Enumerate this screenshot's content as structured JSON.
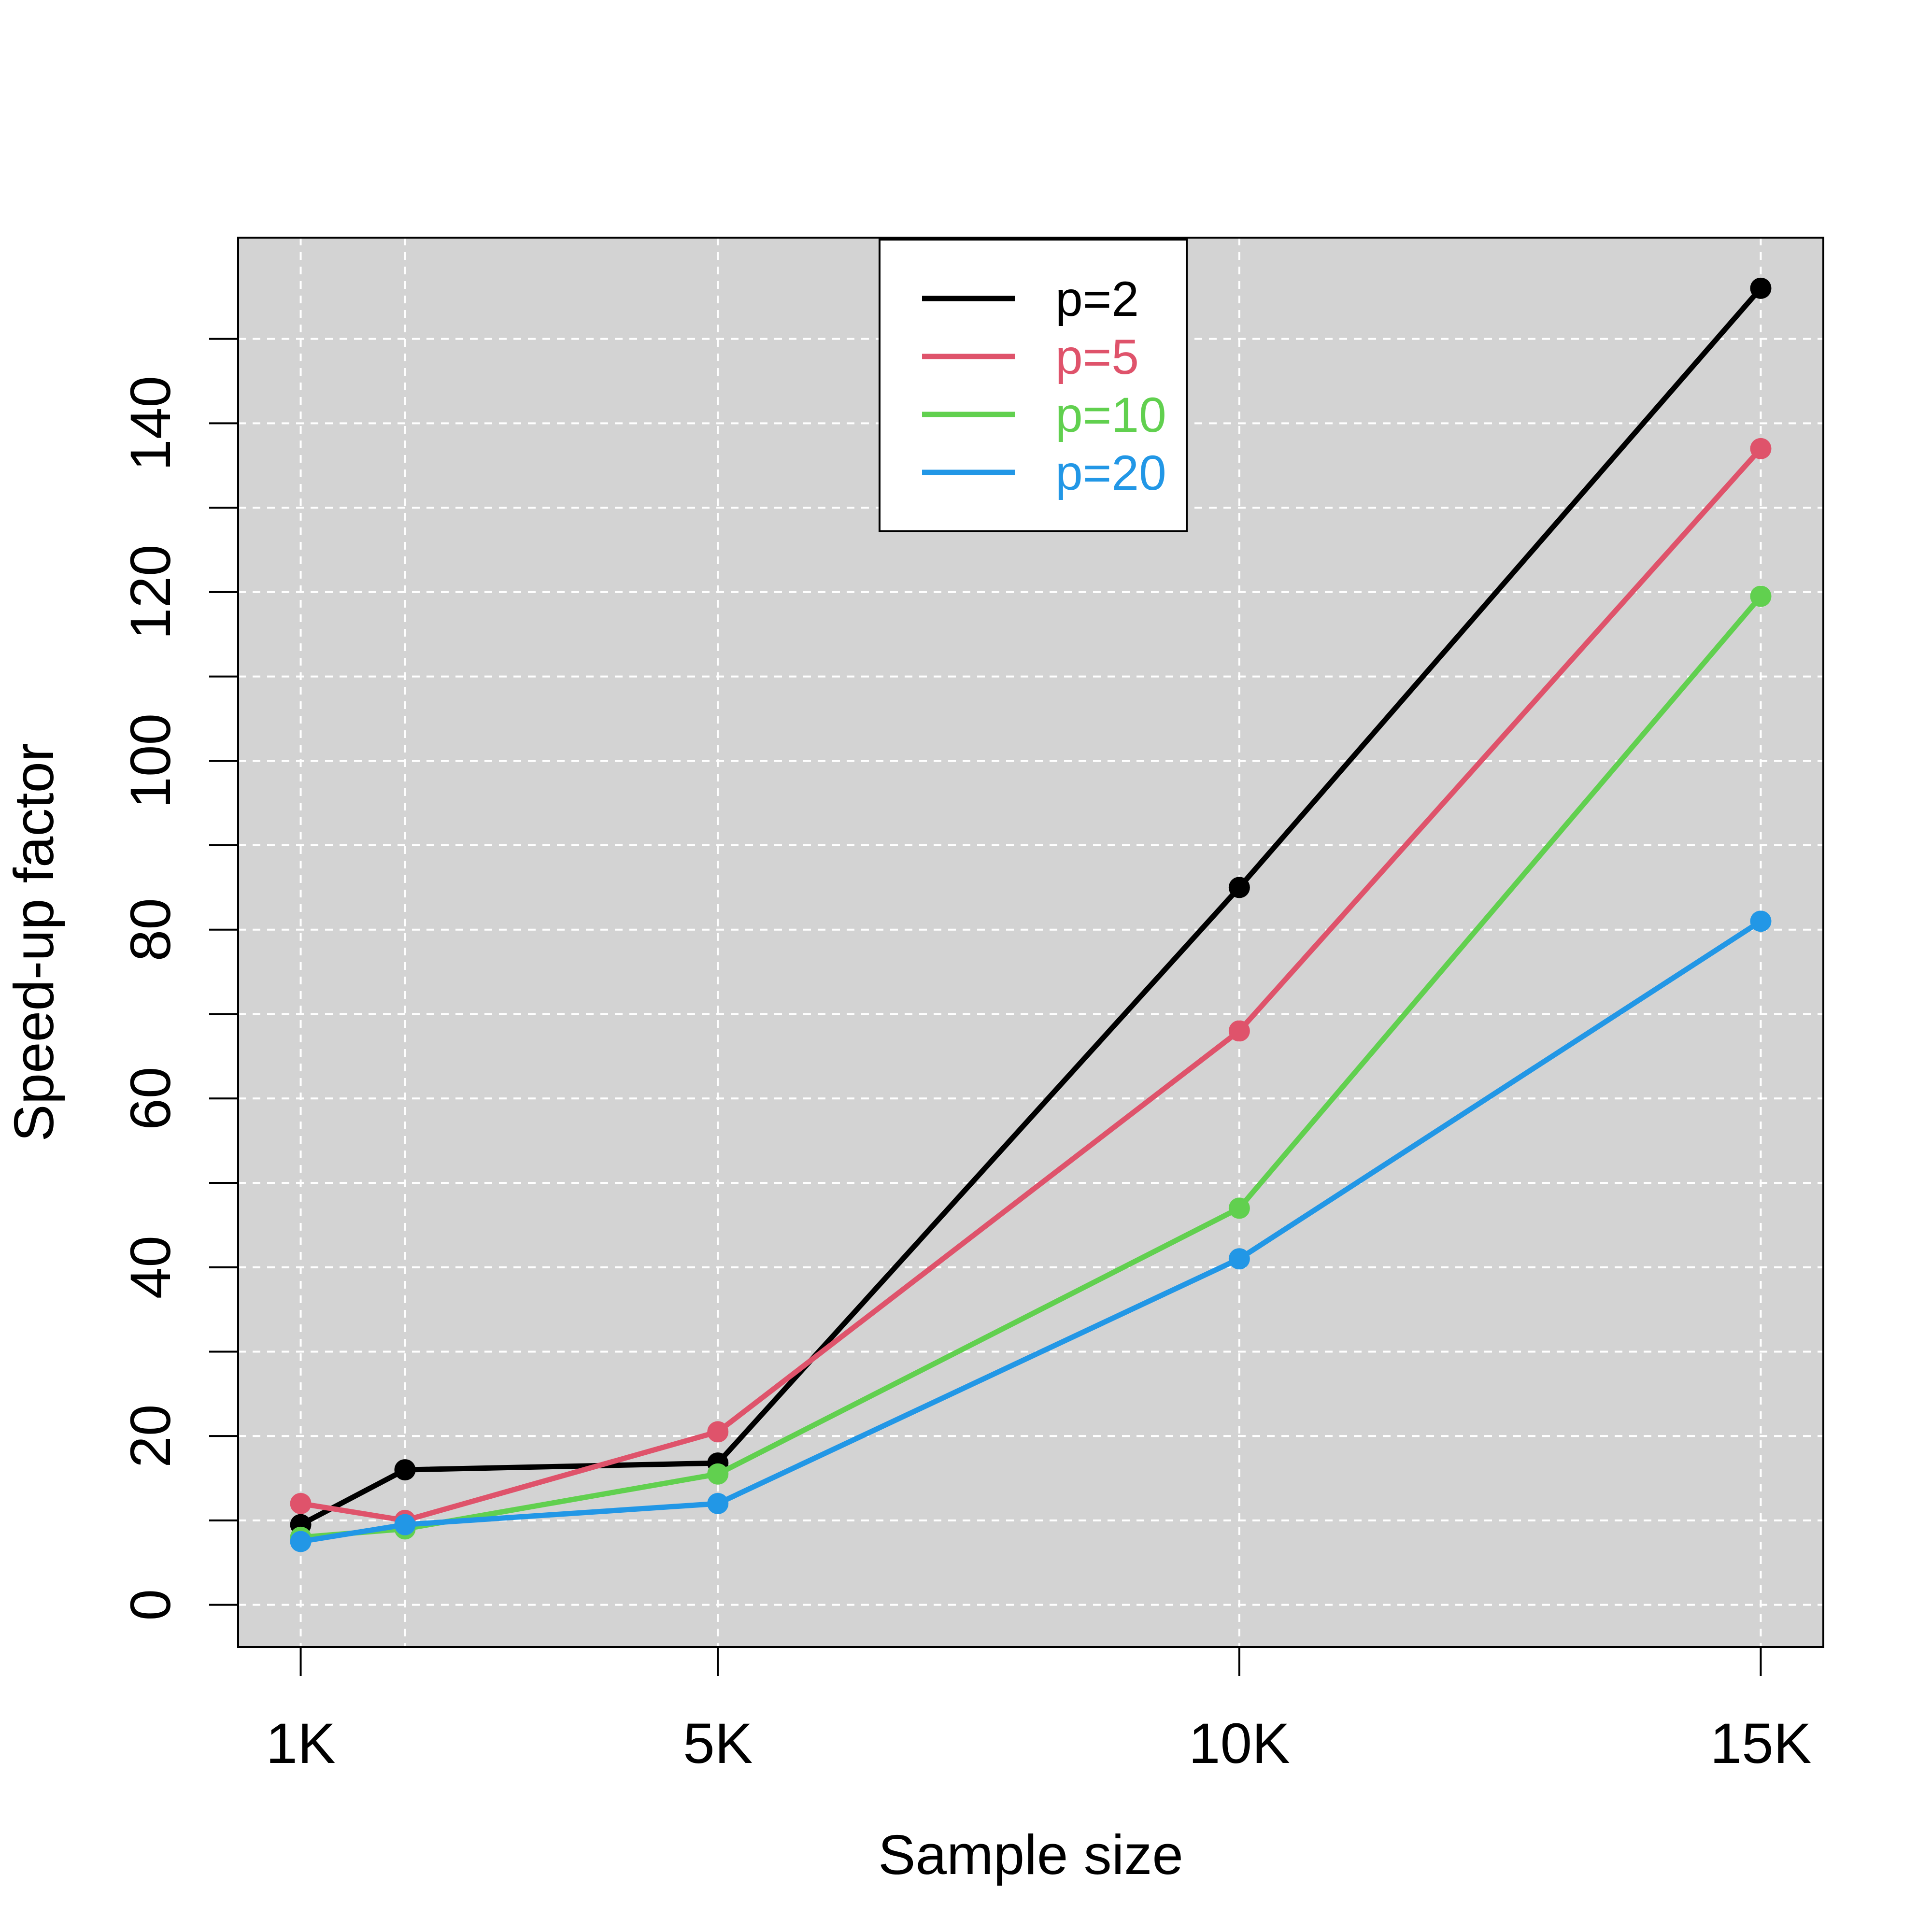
{
  "chart_data": {
    "type": "line",
    "title": "",
    "xlabel": "Sample size",
    "ylabel": "Speed-up factor",
    "x": [
      1000,
      2000,
      5000,
      10000,
      15000
    ],
    "xlim": [
      400,
      15600
    ],
    "ylim": [
      -5,
      162
    ],
    "x_ticks": [
      {
        "value": 1000,
        "label": "1K"
      },
      {
        "value": 5000,
        "label": "5K"
      },
      {
        "value": 10000,
        "label": "10K"
      },
      {
        "value": 15000,
        "label": "15K"
      }
    ],
    "y_ticks": [
      {
        "value": 0,
        "label": "0"
      },
      {
        "value": 20,
        "label": "20"
      },
      {
        "value": 40,
        "label": "40"
      },
      {
        "value": 60,
        "label": "60"
      },
      {
        "value": 80,
        "label": "80"
      },
      {
        "value": 100,
        "label": "100"
      },
      {
        "value": 120,
        "label": "120"
      },
      {
        "value": 140,
        "label": "140"
      }
    ],
    "grid": true,
    "grid_x": [
      1000,
      2000,
      5000,
      10000,
      15000
    ],
    "grid_y": [
      0,
      10,
      20,
      30,
      40,
      50,
      60,
      70,
      80,
      90,
      100,
      110,
      120,
      130,
      140,
      150
    ],
    "background_color": "#D3D3D3",
    "grid_color": "#FFFFFF",
    "legend_position": "top-center",
    "series": [
      {
        "name": "p=2",
        "color": "#000000",
        "values": [
          9.5,
          16,
          16.8,
          85,
          156
        ]
      },
      {
        "name": "p=5",
        "color": "#DF536B",
        "values": [
          12,
          10,
          20.5,
          68,
          137
        ]
      },
      {
        "name": "p=10",
        "color": "#61D04F",
        "values": [
          8,
          9,
          15.5,
          47,
          119.5
        ]
      },
      {
        "name": "p=20",
        "color": "#2297E6",
        "values": [
          7.5,
          9.5,
          12,
          41,
          81
        ]
      }
    ]
  }
}
